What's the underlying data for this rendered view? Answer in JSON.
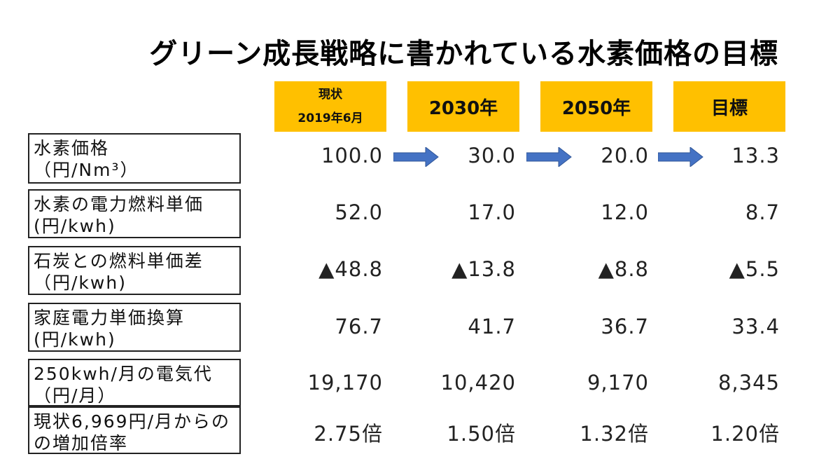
{
  "title": "グリーン成長戦略に書かれている水素価格の目標",
  "columns": [
    {
      "line1": "現状",
      "line2": "2019年6月"
    },
    {
      "line1": "2030年",
      "line2": ""
    },
    {
      "line1": "2050年",
      "line2": ""
    },
    {
      "line1": "目標",
      "line2": ""
    }
  ],
  "rows": [
    {
      "label1": "水素価格",
      "label2": "（円/Nm³）",
      "values": [
        "100.0",
        "30.0",
        "20.0",
        "13.3"
      ]
    },
    {
      "label1": "水素の電力燃料単価",
      "label2": "(円/kwh)",
      "values": [
        "52.0",
        "17.0",
        "12.0",
        "8.7"
      ]
    },
    {
      "label1": "石炭との燃料単価差",
      "label2": "（円/kwh)",
      "values": [
        "▲48.8",
        "▲13.8",
        "▲8.8",
        "▲5.5"
      ]
    },
    {
      "label1": "家庭電力単価換算",
      "label2": "(円/kwh)",
      "values": [
        "76.7",
        "41.7",
        "36.7",
        "33.4"
      ]
    },
    {
      "label1": "250kwh/月の電気代",
      "label2": "（円/月）",
      "values": [
        "19,170",
        "10,420",
        "9,170",
        "8,345"
      ]
    },
    {
      "label1": "現状6,969円/月からの",
      "label2": "の増加倍率",
      "values": [
        "2.75倍",
        "1.50倍",
        "1.32倍",
        "1.20倍"
      ]
    }
  ],
  "colors": {
    "header_bg": "#ffc000",
    "arrow": "#4472c4",
    "border": "#222222"
  },
  "chart_data": {
    "type": "table",
    "title": "グリーン成長戦略に書かれている水素価格の目標",
    "categories": [
      "現状 2019年6月",
      "2030年",
      "2050年",
      "目標"
    ],
    "series": [
      {
        "name": "水素価格（円/Nm³）",
        "values": [
          100.0,
          30.0,
          20.0,
          13.3
        ]
      },
      {
        "name": "水素の電力燃料単価(円/kwh)",
        "values": [
          52.0,
          17.0,
          12.0,
          8.7
        ]
      },
      {
        "name": "石炭との燃料単価差（円/kwh)",
        "values": [
          -48.8,
          -13.8,
          -8.8,
          -5.5
        ]
      },
      {
        "name": "家庭電力単価換算(円/kwh)",
        "values": [
          76.7,
          41.7,
          36.7,
          33.4
        ]
      },
      {
        "name": "250kwh/月の電気代（円/月）",
        "values": [
          19170,
          10420,
          9170,
          8345
        ]
      },
      {
        "name": "現状6,969円/月からの増加倍率",
        "values": [
          2.75,
          1.5,
          1.32,
          1.2
        ]
      }
    ]
  }
}
